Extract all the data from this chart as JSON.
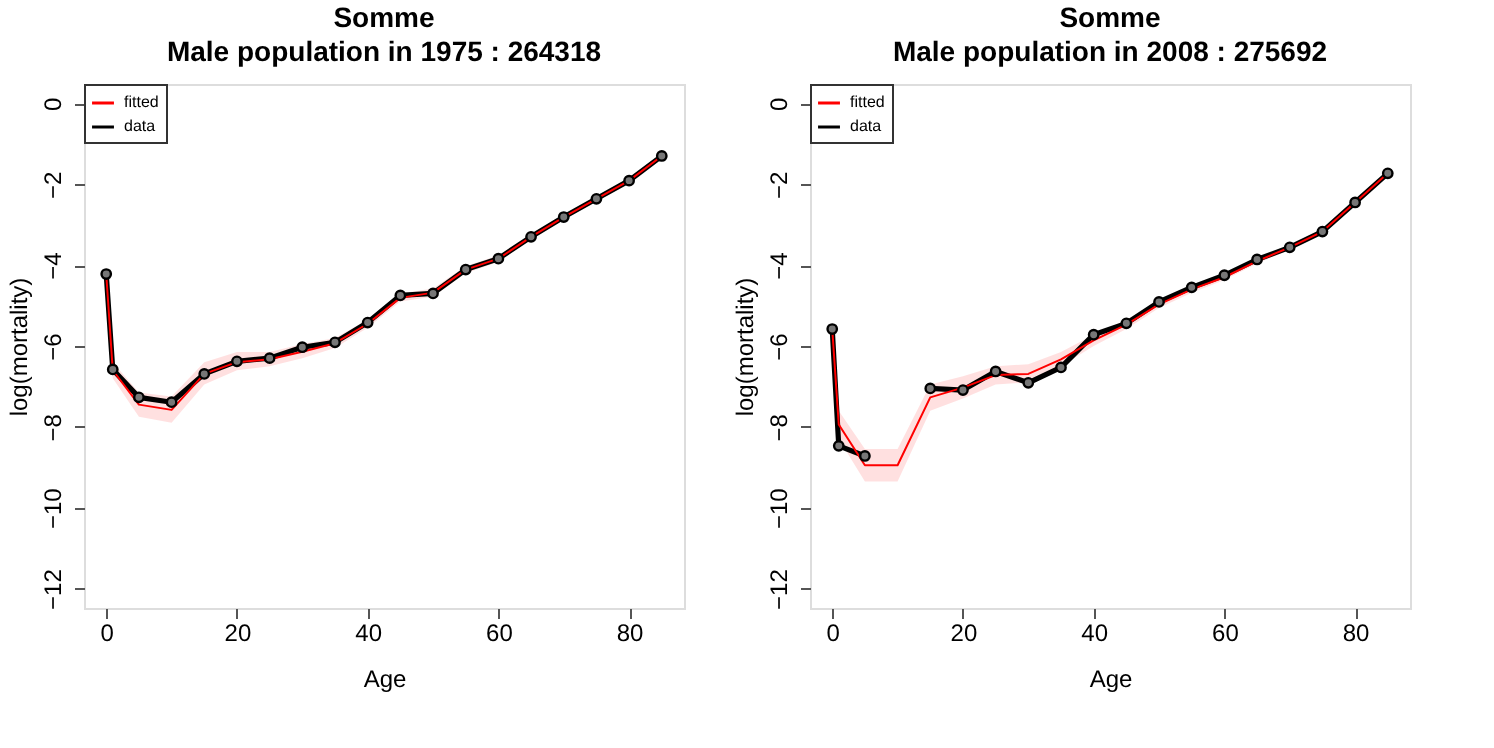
{
  "chart_data": [
    {
      "type": "line",
      "title": "Somme",
      "subtitle": "Male population in  1975 :  264318",
      "xlabel": "Age",
      "ylabel": "log(mortality)",
      "x": [
        0,
        1,
        5,
        10,
        15,
        20,
        25,
        30,
        35,
        40,
        45,
        50,
        55,
        60,
        65,
        70,
        75,
        80,
        85
      ],
      "xlim": [
        -3.4,
        88.4
      ],
      "xticks": [
        0,
        20,
        40,
        60,
        80
      ],
      "ylim": [
        -12.48,
        0.48
      ],
      "yticks": [
        -12,
        -10,
        -8,
        -6,
        -4,
        -2,
        0
      ],
      "grid": false,
      "legend": "top left",
      "series": [
        {
          "name": "fitted",
          "color": "#ff0000",
          "marker": "none",
          "values": [
            -4.22,
            -6.6,
            -7.45,
            -7.58,
            -6.69,
            -6.4,
            -6.33,
            -6.14,
            -5.93,
            -5.45,
            -4.81,
            -4.68,
            -4.11,
            -3.84,
            -3.3,
            -2.81,
            -2.36,
            -1.91,
            -1.3
          ],
          "lower": [
            -4.3,
            -6.8,
            -7.75,
            -7.9,
            -6.95,
            -6.6,
            -6.5,
            -6.3,
            -6.05,
            -5.55,
            -4.9,
            -4.78,
            -4.2,
            -3.92,
            -3.37,
            -2.87,
            -2.42,
            -1.96,
            -1.35
          ],
          "upper": [
            -4.14,
            -6.4,
            -7.15,
            -7.25,
            -6.4,
            -6.15,
            -6.15,
            -5.95,
            -5.8,
            -5.35,
            -4.7,
            -4.58,
            -4.02,
            -3.76,
            -3.23,
            -2.75,
            -2.3,
            -1.86,
            -1.25
          ]
        },
        {
          "name": "data",
          "color": "#000000",
          "marker": "circle",
          "values": [
            -4.22,
            -6.58,
            -7.27,
            -7.39,
            -6.69,
            -6.38,
            -6.3,
            -6.03,
            -5.91,
            -5.42,
            -4.75,
            -4.7,
            -4.11,
            -3.84,
            -3.3,
            -2.81,
            -2.36,
            -1.91,
            -1.3
          ]
        }
      ]
    },
    {
      "type": "line",
      "title": "Somme",
      "subtitle": "Male population in  2008 :  275692",
      "xlabel": "Age",
      "ylabel": "log(mortality)",
      "x": [
        0,
        1,
        5,
        10,
        15,
        20,
        25,
        30,
        35,
        40,
        45,
        50,
        55,
        60,
        65,
        70,
        75,
        80,
        85
      ],
      "xlim": [
        -3.4,
        88.4
      ],
      "xticks": [
        0,
        20,
        40,
        60,
        80
      ],
      "ylim": [
        -12.48,
        0.48
      ],
      "yticks": [
        -12,
        -10,
        -8,
        -6,
        -4,
        -2,
        0
      ],
      "grid": false,
      "legend": "top left",
      "series": [
        {
          "name": "fitted",
          "color": "#ff0000",
          "marker": "none",
          "values": [
            -5.58,
            -7.94,
            -8.95,
            -8.95,
            -7.27,
            -7.03,
            -6.72,
            -6.69,
            -6.33,
            -5.86,
            -5.47,
            -4.97,
            -4.6,
            -4.3,
            -3.9,
            -3.56,
            -3.17,
            -2.45,
            -1.73
          ],
          "lower": [
            -5.7,
            -8.3,
            -9.35,
            -9.35,
            -7.6,
            -7.3,
            -6.95,
            -6.9,
            -6.5,
            -6.0,
            -5.58,
            -5.06,
            -4.68,
            -4.37,
            -3.96,
            -3.62,
            -3.23,
            -2.51,
            -1.79
          ],
          "upper": [
            -5.46,
            -7.6,
            -8.55,
            -8.55,
            -6.95,
            -6.75,
            -6.5,
            -6.45,
            -6.15,
            -5.72,
            -5.36,
            -4.88,
            -4.52,
            -4.23,
            -3.84,
            -3.5,
            -3.11,
            -2.39,
            -1.67
          ]
        },
        {
          "name": "data",
          "color": "#000000",
          "marker": "circle",
          "values": [
            -5.58,
            -8.47,
            -8.72,
            null,
            -7.05,
            -7.09,
            -6.63,
            -6.91,
            -6.53,
            -5.72,
            -5.44,
            -4.91,
            -4.55,
            -4.25,
            -3.86,
            -3.56,
            -3.17,
            -2.45,
            -1.73
          ]
        }
      ]
    }
  ]
}
